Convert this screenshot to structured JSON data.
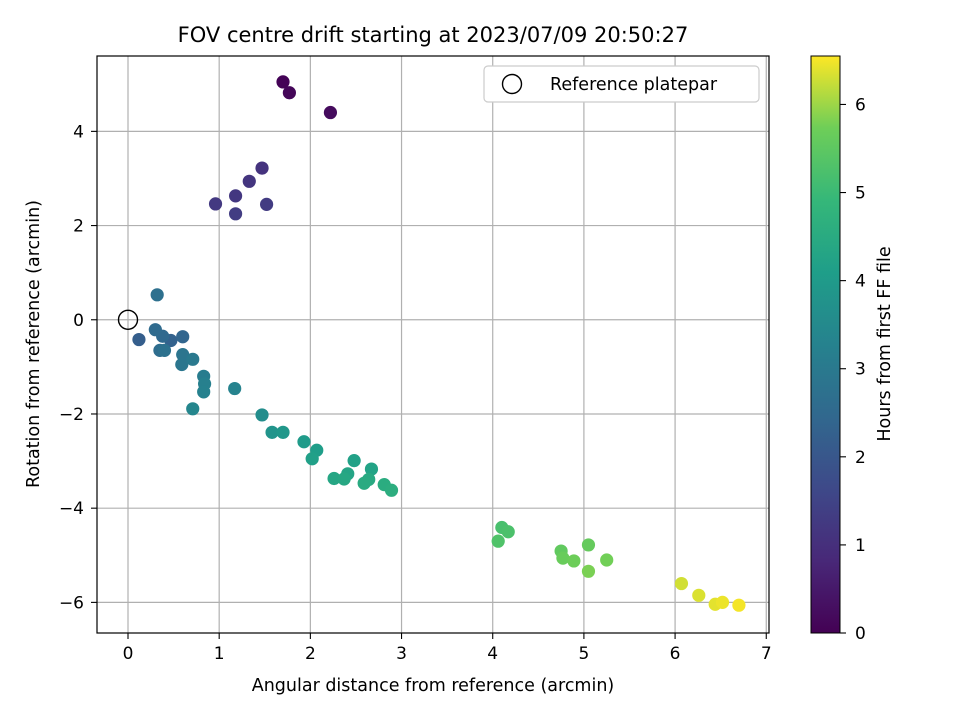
{
  "chart_data": {
    "type": "scatter",
    "title": "FOV centre drift starting at 2023/07/09 20:50:27",
    "xlabel": "Angular distance from reference (arcmin)",
    "ylabel": "Rotation from reference (arcmin)",
    "xlim": [
      -0.34,
      7.03
    ],
    "ylim": [
      -6.65,
      5.6
    ],
    "x_ticks": [
      "0",
      "1",
      "2",
      "3",
      "4",
      "5",
      "6",
      "7"
    ],
    "y_ticks": [
      "−6",
      "−4",
      "−2",
      "0",
      "2",
      "4"
    ],
    "grid": true,
    "legend": {
      "placement": "top-right",
      "entries": [
        {
          "label": "Reference platepar",
          "marker": "open-circle"
        }
      ]
    },
    "reference_point": {
      "x": 0,
      "y": 0
    },
    "colorbar": {
      "label": "Hours from first FF file",
      "range": [
        0,
        6.55
      ],
      "ticks": [
        "0",
        "1",
        "2",
        "3",
        "4",
        "5",
        "6"
      ],
      "colormap": "viridis"
    },
    "points": [
      {
        "x": 1.7,
        "y": 5.05,
        "c": 0.05
      },
      {
        "x": 1.77,
        "y": 4.82,
        "c": 0.1
      },
      {
        "x": 2.22,
        "y": 4.4,
        "c": 0.2
      },
      {
        "x": 1.47,
        "y": 3.22,
        "c": 1.1
      },
      {
        "x": 1.33,
        "y": 2.94,
        "c": 1.15
      },
      {
        "x": 1.18,
        "y": 2.63,
        "c": 1.2
      },
      {
        "x": 0.96,
        "y": 2.46,
        "c": 1.25
      },
      {
        "x": 1.52,
        "y": 2.45,
        "c": 1.3
      },
      {
        "x": 1.18,
        "y": 2.25,
        "c": 1.35
      },
      {
        "x": 0.12,
        "y": -0.42,
        "c": 2.2
      },
      {
        "x": 0.47,
        "y": -0.44,
        "c": 2.3
      },
      {
        "x": 0.6,
        "y": -0.36,
        "c": 2.4
      },
      {
        "x": 0.38,
        "y": -0.35,
        "c": 2.5
      },
      {
        "x": 0.3,
        "y": -0.21,
        "c": 2.55
      },
      {
        "x": 0.35,
        "y": -0.65,
        "c": 2.6
      },
      {
        "x": 0.32,
        "y": 0.53,
        "c": 2.7
      },
      {
        "x": 0.4,
        "y": -0.65,
        "c": 2.75
      },
      {
        "x": 0.6,
        "y": -0.74,
        "c": 2.85
      },
      {
        "x": 0.59,
        "y": -0.95,
        "c": 2.9
      },
      {
        "x": 0.71,
        "y": -0.84,
        "c": 3.0
      },
      {
        "x": 0.83,
        "y": -1.2,
        "c": 3.1
      },
      {
        "x": 0.84,
        "y": -1.36,
        "c": 3.2
      },
      {
        "x": 0.83,
        "y": -1.53,
        "c": 3.25
      },
      {
        "x": 1.17,
        "y": -1.46,
        "c": 3.3
      },
      {
        "x": 0.71,
        "y": -1.89,
        "c": 3.4
      },
      {
        "x": 1.47,
        "y": -2.02,
        "c": 3.6
      },
      {
        "x": 1.58,
        "y": -2.39,
        "c": 3.8
      },
      {
        "x": 1.7,
        "y": -2.39,
        "c": 3.9
      },
      {
        "x": 1.93,
        "y": -2.59,
        "c": 4.0
      },
      {
        "x": 2.07,
        "y": -2.77,
        "c": 4.1
      },
      {
        "x": 2.02,
        "y": -2.95,
        "c": 4.15
      },
      {
        "x": 2.48,
        "y": -2.99,
        "c": 4.2
      },
      {
        "x": 2.67,
        "y": -3.17,
        "c": 4.25
      },
      {
        "x": 2.41,
        "y": -3.27,
        "c": 4.3
      },
      {
        "x": 2.26,
        "y": -3.37,
        "c": 4.35
      },
      {
        "x": 2.37,
        "y": -3.38,
        "c": 4.4
      },
      {
        "x": 2.64,
        "y": -3.39,
        "c": 4.45
      },
      {
        "x": 2.59,
        "y": -3.47,
        "c": 4.5
      },
      {
        "x": 2.81,
        "y": -3.5,
        "c": 4.55
      },
      {
        "x": 2.89,
        "y": -3.62,
        "c": 4.6
      },
      {
        "x": 4.1,
        "y": -4.41,
        "c": 5.2
      },
      {
        "x": 4.17,
        "y": -4.5,
        "c": 5.25
      },
      {
        "x": 4.06,
        "y": -4.7,
        "c": 5.3
      },
      {
        "x": 4.75,
        "y": -4.91,
        "c": 5.55
      },
      {
        "x": 5.05,
        "y": -4.78,
        "c": 5.6
      },
      {
        "x": 4.77,
        "y": -5.06,
        "c": 5.65
      },
      {
        "x": 4.89,
        "y": -5.12,
        "c": 5.7
      },
      {
        "x": 5.25,
        "y": -5.1,
        "c": 5.75
      },
      {
        "x": 5.05,
        "y": -5.34,
        "c": 5.8
      },
      {
        "x": 6.07,
        "y": -5.6,
        "c": 6.3
      },
      {
        "x": 6.26,
        "y": -5.85,
        "c": 6.35
      },
      {
        "x": 6.44,
        "y": -6.04,
        "c": 6.4
      },
      {
        "x": 6.52,
        "y": -6.0,
        "c": 6.45
      },
      {
        "x": 6.7,
        "y": -6.06,
        "c": 6.5
      }
    ]
  }
}
